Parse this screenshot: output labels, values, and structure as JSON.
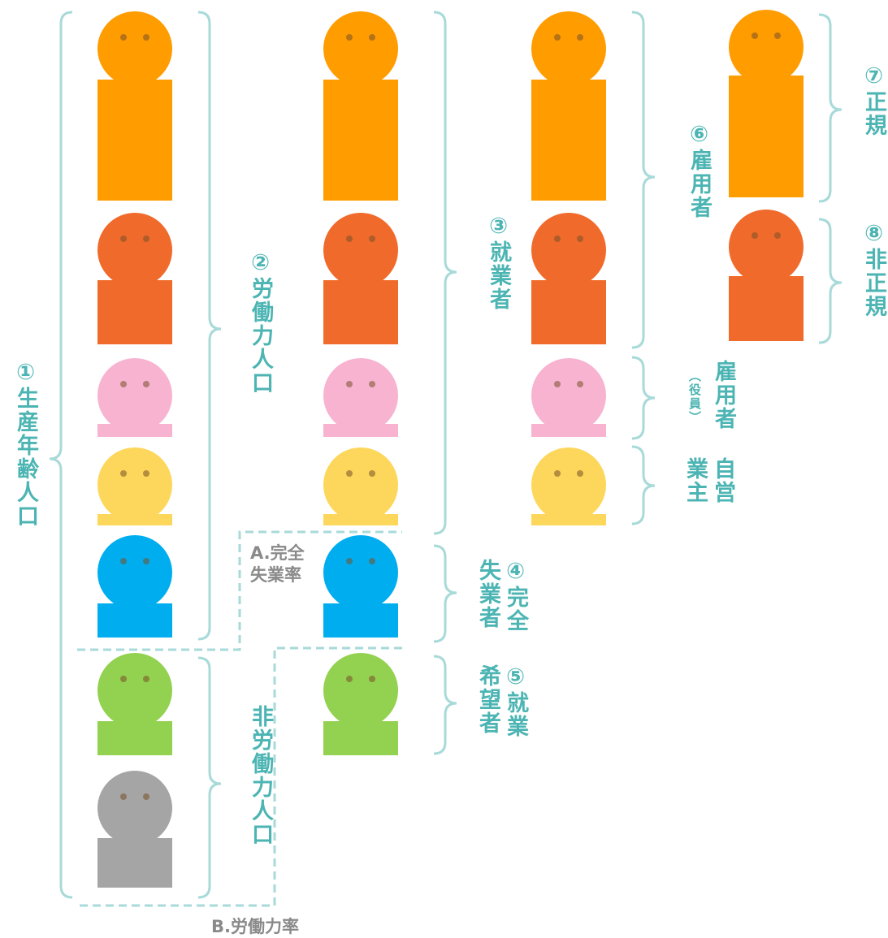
{
  "labels": {
    "working_age": "①生産年齢人口",
    "labor_force": "②労働力人口",
    "not_in_labor_force": "非労働力人口",
    "employed": "③就業者",
    "unemployed": "④完全失業者",
    "want_work": "⑤就業希望者",
    "employee": "⑥雇用者",
    "regular": "⑦正規",
    "non_regular": "⑧非正規",
    "executive": {
      "main": "雇用者",
      "note": "（役員）"
    },
    "self_employed": "自営業主",
    "rate_a": [
      "A.完全",
      "失業率"
    ],
    "rate_b": "B.労働力率"
  }
}
